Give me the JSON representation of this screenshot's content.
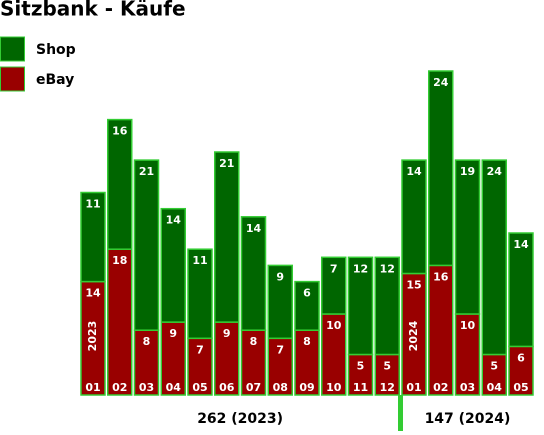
{
  "chart_data": {
    "type": "stacked-bar",
    "title": "Sitzbank - Käufe",
    "groups": [
      {
        "name": "2023",
        "summary": "262 (2023)",
        "categories": [
          "01",
          "02",
          "03",
          "04",
          "05",
          "06",
          "07",
          "08",
          "09",
          "10",
          "11",
          "12"
        ]
      },
      {
        "name": "2024",
        "summary": "147 (2024)",
        "categories": [
          "01",
          "02",
          "03",
          "04",
          "05"
        ]
      }
    ],
    "series": [
      {
        "name": "eBay",
        "color": "#990000",
        "values": [
          14,
          18,
          8,
          9,
          7,
          9,
          8,
          7,
          8,
          10,
          5,
          5,
          15,
          16,
          10,
          5,
          6
        ]
      },
      {
        "name": "Shop",
        "color": "#006600",
        "values": [
          11,
          16,
          21,
          14,
          11,
          21,
          14,
          9,
          6,
          7,
          12,
          12,
          14,
          24,
          19,
          24,
          14
        ]
      }
    ]
  }
}
